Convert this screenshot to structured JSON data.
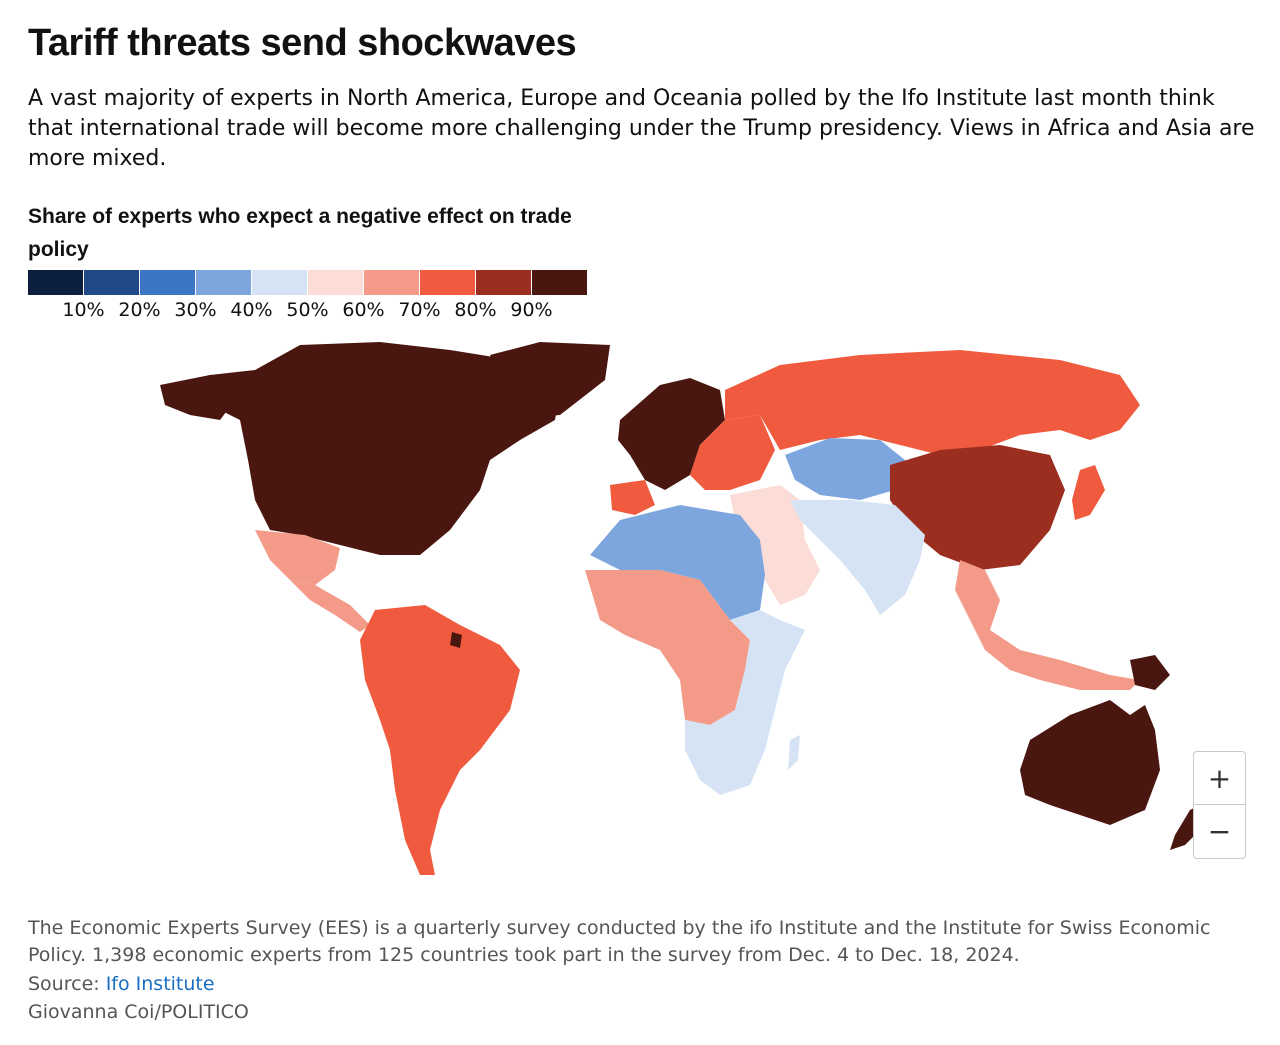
{
  "header": {
    "title": "Tariff threats send shockwaves",
    "subtitle": "A vast majority of experts in North America, Europe and Oceania polled by the Ifo Institute last month think that international trade will become more challenging under the Trump presidency. Views in Africa and Asia are more mixed."
  },
  "legend": {
    "title": "Share of experts who expect a negative effect on trade policy",
    "colors": [
      "#0c1f3f",
      "#1f4a87",
      "#3a76c4",
      "#7ea6de",
      "#d6e3f5",
      "#fbdcd6",
      "#f49a88",
      "#f05a3e",
      "#9c2e1f",
      "#4a1710"
    ],
    "ticks": [
      "10%",
      "20%",
      "30%",
      "40%",
      "50%",
      "60%",
      "70%",
      "80%",
      "90%"
    ]
  },
  "map": {
    "regions": [
      {
        "name": "North America",
        "value_band": "90-100%",
        "color": "#4a1710"
      },
      {
        "name": "Greenland",
        "value_band": "90-100%",
        "color": "#4a1710"
      },
      {
        "name": "Mexico",
        "value_band": "60-70%",
        "color": "#f49a88"
      },
      {
        "name": "Central America",
        "value_band": "60-70%",
        "color": "#f49a88"
      },
      {
        "name": "South America",
        "value_band": "70-80%",
        "color": "#f05a3e"
      },
      {
        "name": "Western Europe",
        "value_band": "90-100%",
        "color": "#4a1710"
      },
      {
        "name": "Eastern Europe",
        "value_band": "70-80%",
        "color": "#f05a3e"
      },
      {
        "name": "Russia",
        "value_band": "70-80%",
        "color": "#f05a3e"
      },
      {
        "name": "Central Asia",
        "value_band": "30-40%",
        "color": "#7ea6de"
      },
      {
        "name": "China",
        "value_band": "80-90%",
        "color": "#9c2e1f"
      },
      {
        "name": "Japan",
        "value_band": "70-80%",
        "color": "#f05a3e"
      },
      {
        "name": "Middle East",
        "value_band": "50-60%",
        "color": "#fbdcd6"
      },
      {
        "name": "South Asia",
        "value_band": "40-50%",
        "color": "#d6e3f5"
      },
      {
        "name": "Southeast Asia",
        "value_band": "60-70%",
        "color": "#f49a88"
      },
      {
        "name": "North Africa",
        "value_band": "30-40%",
        "color": "#7ea6de"
      },
      {
        "name": "West & Central Africa",
        "value_band": "60-70%",
        "color": "#f49a88"
      },
      {
        "name": "East & Southern Africa",
        "value_band": "40-50%",
        "color": "#d6e3f5"
      },
      {
        "name": "Australia",
        "value_band": "90-100%",
        "color": "#4a1710"
      },
      {
        "name": "New Zealand",
        "value_band": "90-100%",
        "color": "#4a1710"
      }
    ]
  },
  "controls": {
    "zoom_in": "+",
    "zoom_out": "−"
  },
  "footer": {
    "note": "The Economic Experts Survey (EES) is a quarterly survey conducted by the ifo Institute and the Institute for Swiss Economic Policy. 1,398 economic experts from 125 countries took part in the survey from Dec. 4 to Dec. 18, 2024.",
    "source_label": "Source: ",
    "source_link": "Ifo Institute",
    "credit": "Giovanna Coi/POLITICO"
  }
}
